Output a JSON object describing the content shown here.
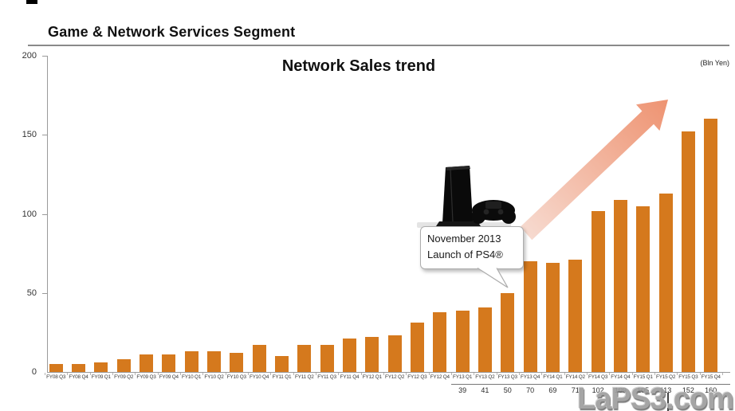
{
  "page": {
    "segment_title": "Game & Network Services Segment",
    "watermark": "LaPS3.com"
  },
  "chart_data": {
    "type": "bar",
    "title": "Network Sales trend",
    "unit_label": "(Bln Yen)",
    "xlabel": "",
    "ylabel": "",
    "ylim": [
      0,
      200
    ],
    "yticks": [
      0,
      50,
      100,
      150,
      200
    ],
    "grid": false,
    "legend": "none",
    "bar_color": "#D5791D",
    "categories": [
      "FY08 Q3",
      "FY08 Q4",
      "FY09 Q1",
      "FY09 Q2",
      "FY09 Q3",
      "FY09 Q4",
      "FY10 Q1",
      "FY10 Q2",
      "FY10 Q3",
      "FY10 Q4",
      "FY11 Q1",
      "FY11 Q2",
      "FY11 Q3",
      "FY11 Q4",
      "FY12 Q1",
      "FY12 Q2",
      "FY12 Q3",
      "FY12 Q4",
      "FY13 Q1",
      "FY13 Q2",
      "FY13 Q3",
      "FY13 Q4",
      "FY14 Q1",
      "FY14 Q2",
      "FY14 Q3",
      "FY14 Q4",
      "FY15 Q1",
      "FY15 Q2",
      "FY15 Q3",
      "FY15 Q4"
    ],
    "values": [
      5,
      5,
      6,
      8,
      11,
      11,
      13,
      13,
      12,
      17,
      10,
      17,
      17,
      21,
      22,
      23,
      31,
      38,
      39,
      41,
      50,
      70,
      69,
      71,
      102,
      109,
      105,
      113,
      152,
      160
    ],
    "data_table": {
      "start_category": "FY13 Q1",
      "values": [
        "39",
        "41",
        "50",
        "70",
        "69",
        "71",
        "102",
        "109",
        "105",
        "113",
        "152",
        "160"
      ]
    },
    "annotation": {
      "line1": "November 2013",
      "line2": "Launch of PS4®",
      "target_category": "FY13 Q3"
    },
    "trend_arrow_colors": {
      "start": "#F7DCD2",
      "end": "#EE9270"
    }
  }
}
